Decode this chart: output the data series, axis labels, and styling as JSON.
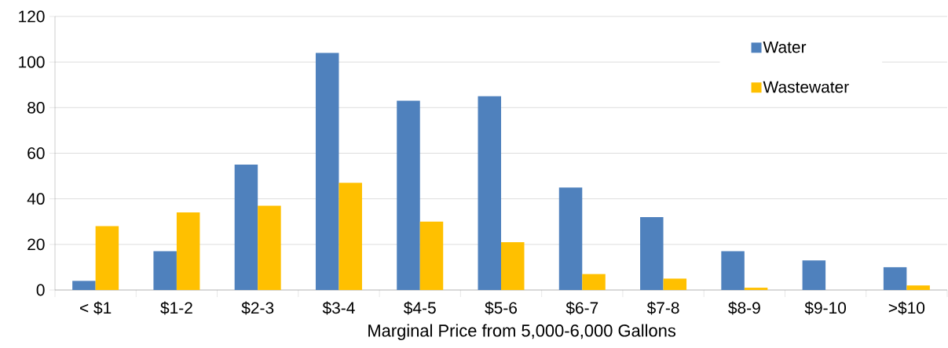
{
  "chart_data": {
    "type": "bar",
    "xlabel": "Marginal Price from 5,000-6,000 Gallons",
    "categories": [
      "< $1",
      "$1-2",
      "$2-3",
      "$3-4",
      "$4-5",
      "$5-6",
      "$6-7",
      "$7-8",
      "$8-9",
      "$9-10",
      ">$10"
    ],
    "series": [
      {
        "name": "Water",
        "color": "#4f81bd",
        "values": [
          4,
          17,
          55,
          104,
          83,
          85,
          45,
          32,
          17,
          13,
          10
        ]
      },
      {
        "name": "Wastewater",
        "color": "#ffc000",
        "values": [
          28,
          34,
          37,
          47,
          30,
          21,
          7,
          5,
          1,
          0,
          2
        ]
      }
    ],
    "ylim": [
      0,
      120
    ],
    "yticks": [
      0,
      20,
      40,
      60,
      80,
      100,
      120
    ],
    "grid": "y",
    "legend": "top right"
  }
}
